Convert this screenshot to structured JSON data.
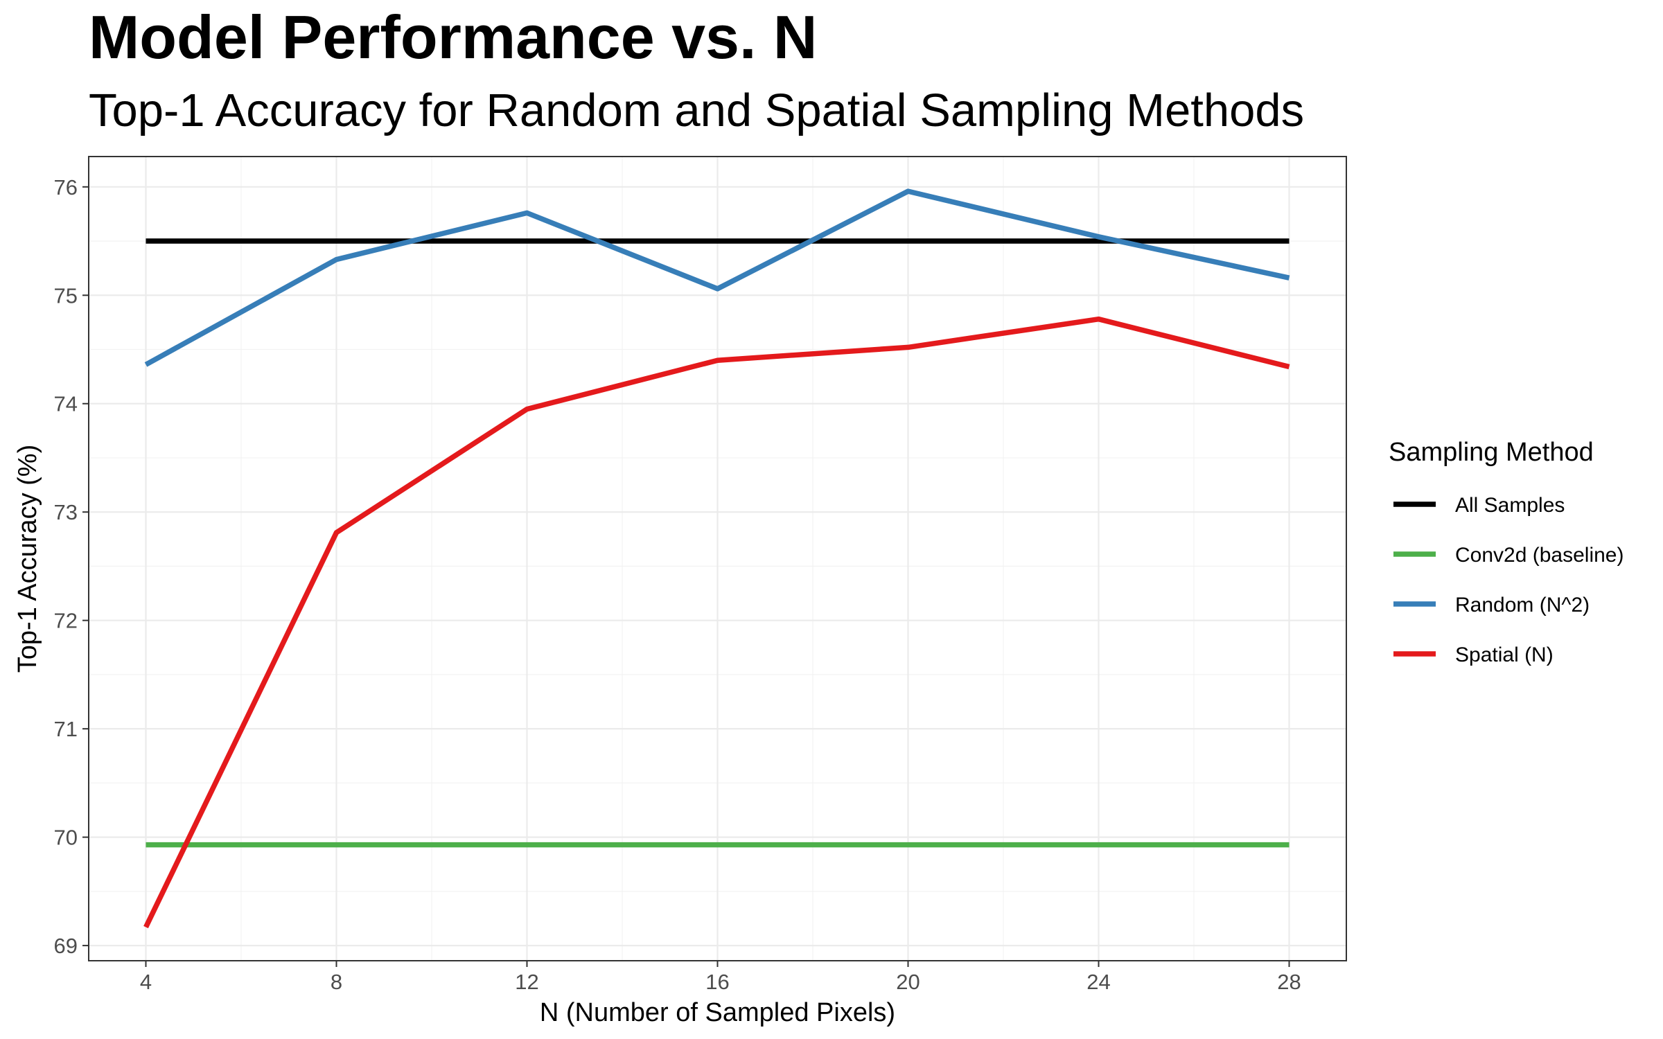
{
  "chart_data": {
    "type": "line",
    "title": "Model Performance vs. N",
    "subtitle": "Top-1 Accuracy for Random and Spatial Sampling Methods",
    "xlabel": "N (Number of Sampled Pixels)",
    "ylabel": "Top-1 Accuracy (%)",
    "xlim": [
      2.8,
      29.2
    ],
    "ylim": [
      68.86,
      76.28
    ],
    "x_ticks": [
      4,
      8,
      12,
      16,
      20,
      24,
      28
    ],
    "y_ticks": [
      69,
      70,
      71,
      72,
      73,
      74,
      75,
      76
    ],
    "grid": true,
    "legend": {
      "title": "Sampling Method",
      "position": "right"
    },
    "x": [
      4,
      8,
      12,
      16,
      20,
      24,
      28
    ],
    "series": [
      {
        "name": "All Samples",
        "color": "#000000",
        "values": [
          75.5,
          75.5,
          75.5,
          75.5,
          75.5,
          75.5,
          75.5
        ]
      },
      {
        "name": "Conv2d (baseline)",
        "color": "#4daf4a",
        "values": [
          69.93,
          69.93,
          69.93,
          69.93,
          69.93,
          69.93,
          69.93
        ]
      },
      {
        "name": "Random (N^2)",
        "color": "#377eb8",
        "values": [
          74.36,
          75.33,
          75.76,
          75.06,
          75.96,
          75.54,
          75.16
        ]
      },
      {
        "name": "Spatial (N)",
        "color": "#e41a1c",
        "values": [
          69.17,
          72.81,
          73.95,
          74.4,
          74.52,
          74.78,
          74.34
        ]
      }
    ]
  }
}
